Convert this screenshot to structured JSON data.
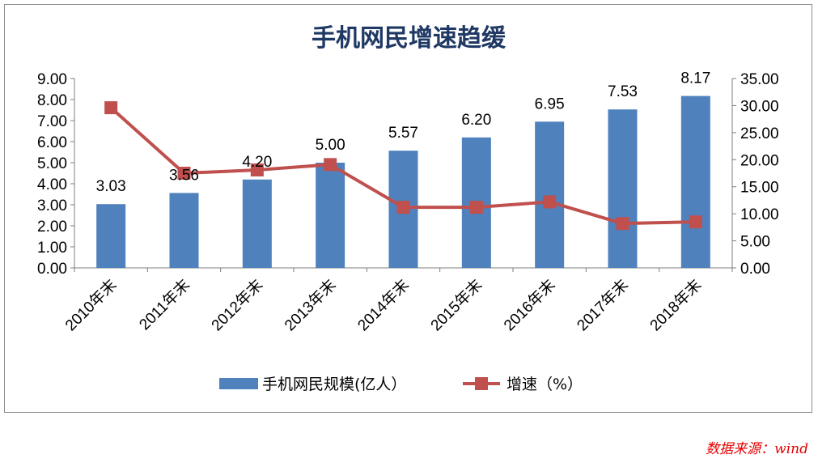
{
  "colors": {
    "bar": "#4f81bd",
    "line": "#c0504d",
    "title": "#1f3864",
    "axis": "#7f7f7f",
    "source": "#e60000"
  },
  "chart_data": {
    "type": "bar",
    "title": "手机网民增速趋缓",
    "categories": [
      "2010年末",
      "2011年末",
      "2012年末",
      "2013年末",
      "2014年末",
      "2015年末",
      "2016年末",
      "2017年末",
      "2018年末"
    ],
    "series": [
      {
        "name": "手机网民规模(亿人）",
        "type": "bar",
        "axis": "left",
        "values": [
          3.03,
          3.56,
          4.2,
          5.0,
          5.57,
          6.2,
          6.95,
          7.53,
          8.17
        ],
        "labels": [
          "3.03",
          "3.56",
          "4.20",
          "5.00",
          "5.57",
          "6.20",
          "6.95",
          "7.53",
          "8.17"
        ]
      },
      {
        "name": "增速（%）",
        "type": "line",
        "axis": "right",
        "values": [
          29.6,
          17.5,
          18.1,
          19.1,
          11.2,
          11.2,
          12.2,
          8.2,
          8.5
        ]
      }
    ],
    "y_left": {
      "min": 0,
      "max": 9,
      "ticks": [
        "0.00",
        "1.00",
        "2.00",
        "3.00",
        "4.00",
        "5.00",
        "6.00",
        "7.00",
        "8.00",
        "9.00"
      ]
    },
    "y_right": {
      "min": 0,
      "max": 35,
      "ticks": [
        "0.00",
        "5.00",
        "10.00",
        "15.00",
        "20.00",
        "25.00",
        "30.00",
        "35.00"
      ]
    },
    "grid": false,
    "legend_position": "bottom"
  },
  "source_note": "数据来源：wind"
}
